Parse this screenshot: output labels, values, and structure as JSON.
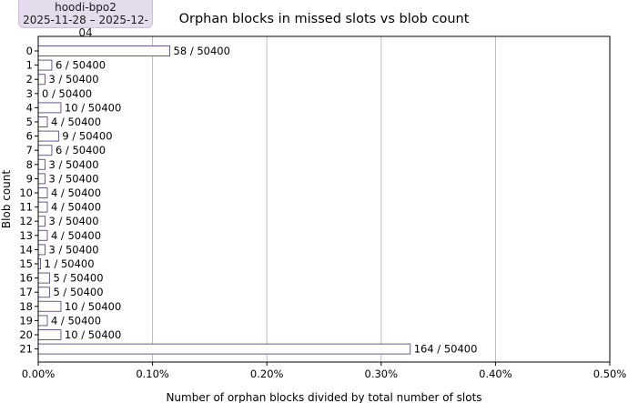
{
  "badge": {
    "line1": "hoodi-bpo2",
    "line2": "2025-11-28 – 2025-12-04"
  },
  "chart_data": {
    "type": "bar",
    "orientation": "horizontal",
    "title": "Orphan blocks in missed slots vs blob count",
    "xlabel": "Number of orphan blocks divided by total number of slots",
    "ylabel": "Blob count",
    "xlim": [
      0,
      0.005
    ],
    "x_ticks": [
      "0.00%",
      "0.10%",
      "0.20%",
      "0.30%",
      "0.40%",
      "0.50%"
    ],
    "grid": "vertical",
    "categories": [
      "0",
      "1",
      "2",
      "3",
      "4",
      "5",
      "6",
      "7",
      "8",
      "9",
      "10",
      "11",
      "12",
      "13",
      "14",
      "15",
      "16",
      "17",
      "18",
      "19",
      "20",
      "21"
    ],
    "orphans": [
      58,
      6,
      3,
      0,
      10,
      4,
      9,
      6,
      3,
      3,
      4,
      4,
      3,
      4,
      3,
      1,
      5,
      5,
      10,
      4,
      10,
      164
    ],
    "total_slots": 50400,
    "bar_labels": [
      "58 / 50400",
      "6 / 50400",
      "3 / 50400",
      "0 / 50400",
      "10 / 50400",
      "4 / 50400",
      "9 / 50400",
      "6 / 50400",
      "3 / 50400",
      "3 / 50400",
      "4 / 50400",
      "4 / 50400",
      "3 / 50400",
      "4 / 50400",
      "3 / 50400",
      "1 / 50400",
      "5 / 50400",
      "5 / 50400",
      "10 / 50400",
      "4 / 50400",
      "10 / 50400",
      "164 / 50400"
    ],
    "colors": {
      "bar_fill": "#ffffff",
      "bar_edge": "#6b5a8e",
      "grid": "#b0b0b0",
      "axis": "#000000"
    }
  }
}
